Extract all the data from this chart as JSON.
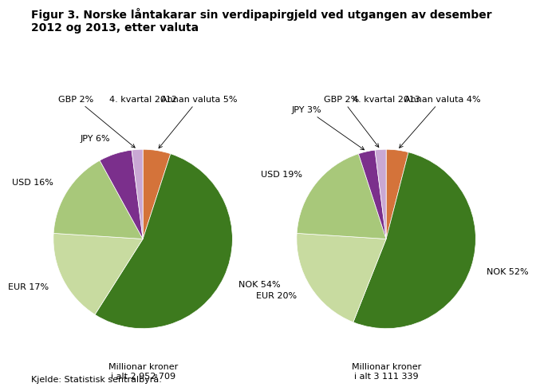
{
  "title_line1": "Figur 3. Norske låntakarar sin verdipapirgjeld ved utgangen av desember",
  "title_line2": "2012 og 2013, etter valuta",
  "pie1_title": "4. kvartal 2012",
  "pie2_title": "4. kvartal 2013",
  "pie1_subtitle": "Millionar kroner\ni alt 2 952 709",
  "pie2_subtitle": "Millionar kroner\ni alt 3 111 339",
  "source": "Kjelde: Statistisk sentralbyrå.",
  "pie1_values": [
    5,
    54,
    17,
    16,
    6,
    2
  ],
  "pie2_values": [
    4,
    52,
    20,
    19,
    3,
    2
  ],
  "pie1_labels": [
    "Annan valuta 5%",
    "NOK 54%",
    "EUR 17%",
    "USD 16%",
    "JPY 6%",
    "GBP 2%"
  ],
  "pie2_labels": [
    "Annan valuta 4%",
    "NOK 52%",
    "EUR 20%",
    "USD 19%",
    "JPY 3%",
    "GBP 2%"
  ],
  "colors": [
    "#d4733a",
    "#3d7a1e",
    "#c8dba0",
    "#a8c87a",
    "#7b2f8c",
    "#c9a8d4"
  ],
  "background_color": "#ffffff",
  "title_fontsize": 10,
  "label_fontsize": 8,
  "subtitle_fontsize": 8,
  "source_fontsize": 8
}
